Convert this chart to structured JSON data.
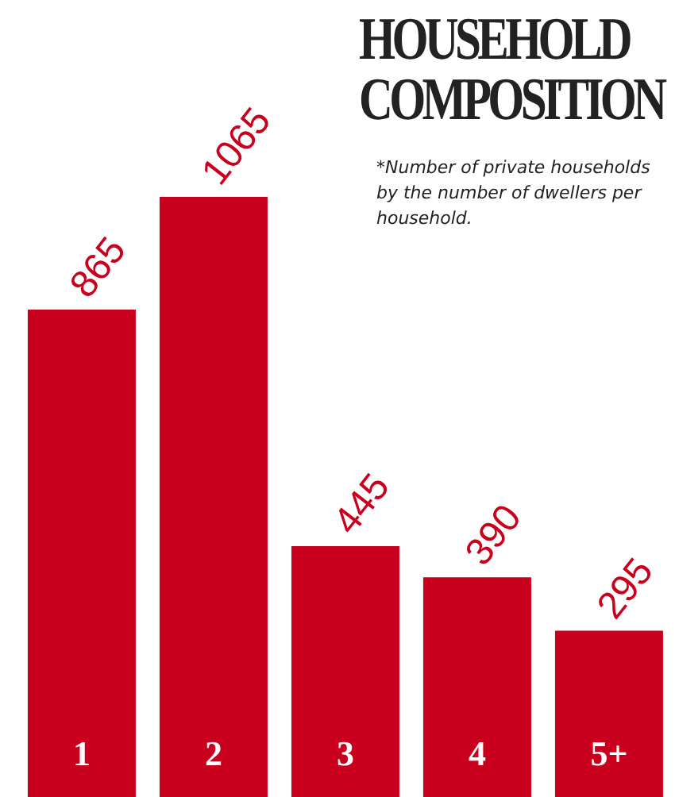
{
  "chart_data": {
    "type": "bar",
    "title": "HOUSEHOLD COMPOSITION",
    "subtitle": "*Number of private households by the number of dwellers per household.",
    "categories": [
      "1",
      "2",
      "3",
      "4",
      "5+"
    ],
    "values": [
      865,
      1065,
      445,
      390,
      295
    ],
    "color": "#c8001e",
    "data_labels": true
  }
}
